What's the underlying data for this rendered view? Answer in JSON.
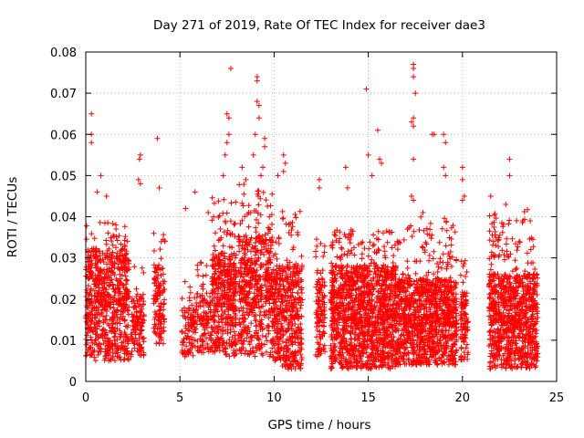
{
  "chart_data": {
    "type": "scatter",
    "title": "Day 271 of 2019, Rate Of TEC Index for receiver dae3",
    "xlabel": "GPS time / hours",
    "ylabel": "ROTI / TECUs",
    "xlim": [
      0,
      25
    ],
    "ylim": [
      0,
      0.08
    ],
    "xticks": [
      0,
      5,
      10,
      15,
      20,
      25
    ],
    "yticks": [
      0,
      0.01,
      0.02,
      0.03,
      0.04,
      0.05,
      0.06,
      0.07,
      0.08
    ],
    "xtick_labels": [
      "0",
      "5",
      "10",
      "15",
      "20",
      "25"
    ],
    "ytick_labels": [
      "0",
      "0.01",
      "0.02",
      "0.03",
      "0.04",
      "0.05",
      "0.06",
      "0.07",
      "0.08"
    ],
    "grid": true,
    "marker": "+",
    "color": "#ff0000",
    "series": [
      {
        "name": "ROTI",
        "clusters": [
          {
            "t_start": 0.0,
            "t_end": 2.3,
            "y_low": 0.005,
            "y_high": 0.039,
            "count": 700,
            "ymean": 0.018
          },
          {
            "t_start": 2.4,
            "t_end": 3.1,
            "y_low": 0.006,
            "y_high": 0.028,
            "count": 120,
            "ymean": 0.013
          },
          {
            "t_start": 3.6,
            "t_end": 4.2,
            "y_low": 0.009,
            "y_high": 0.036,
            "count": 130,
            "ymean": 0.018
          },
          {
            "t_start": 5.1,
            "t_end": 5.9,
            "y_low": 0.006,
            "y_high": 0.025,
            "count": 100,
            "ymean": 0.012
          },
          {
            "t_start": 5.9,
            "t_end": 6.7,
            "y_low": 0.007,
            "y_high": 0.03,
            "count": 110,
            "ymean": 0.014
          },
          {
            "t_start": 6.7,
            "t_end": 8.0,
            "y_low": 0.006,
            "y_high": 0.045,
            "count": 420,
            "ymean": 0.018
          },
          {
            "t_start": 8.1,
            "t_end": 9.9,
            "y_low": 0.006,
            "y_high": 0.048,
            "count": 520,
            "ymean": 0.02
          },
          {
            "t_start": 9.9,
            "t_end": 10.4,
            "y_low": 0.005,
            "y_high": 0.035,
            "count": 160,
            "ymean": 0.016
          },
          {
            "t_start": 10.4,
            "t_end": 11.5,
            "y_low": 0.003,
            "y_high": 0.042,
            "count": 330,
            "ymean": 0.015
          },
          {
            "t_start": 12.2,
            "t_end": 12.7,
            "y_low": 0.006,
            "y_high": 0.035,
            "count": 120,
            "ymean": 0.015
          },
          {
            "t_start": 13.0,
            "t_end": 16.5,
            "y_low": 0.003,
            "y_high": 0.037,
            "count": 1300,
            "ymean": 0.015
          },
          {
            "t_start": 16.5,
            "t_end": 19.7,
            "y_low": 0.004,
            "y_high": 0.04,
            "count": 1100,
            "ymean": 0.014
          },
          {
            "t_start": 19.9,
            "t_end": 20.3,
            "y_low": 0.005,
            "y_high": 0.03,
            "count": 100,
            "ymean": 0.013
          },
          {
            "t_start": 21.4,
            "t_end": 24.0,
            "y_low": 0.003,
            "y_high": 0.042,
            "count": 900,
            "ymean": 0.014
          }
        ],
        "outliers": [
          {
            "x": 0.3,
            "y": 0.065
          },
          {
            "x": 0.3,
            "y": 0.06
          },
          {
            "x": 0.3,
            "y": 0.058
          },
          {
            "x": 0.8,
            "y": 0.05
          },
          {
            "x": 0.6,
            "y": 0.046
          },
          {
            "x": 1.1,
            "y": 0.045
          },
          {
            "x": 2.9,
            "y": 0.055
          },
          {
            "x": 2.85,
            "y": 0.054
          },
          {
            "x": 2.8,
            "y": 0.049
          },
          {
            "x": 2.9,
            "y": 0.048
          },
          {
            "x": 3.8,
            "y": 0.059
          },
          {
            "x": 3.9,
            "y": 0.047
          },
          {
            "x": 5.3,
            "y": 0.042
          },
          {
            "x": 5.8,
            "y": 0.046
          },
          {
            "x": 6.5,
            "y": 0.041
          },
          {
            "x": 7.5,
            "y": 0.065
          },
          {
            "x": 7.6,
            "y": 0.064
          },
          {
            "x": 7.6,
            "y": 0.06
          },
          {
            "x": 7.5,
            "y": 0.058
          },
          {
            "x": 7.4,
            "y": 0.055
          },
          {
            "x": 7.3,
            "y": 0.05
          },
          {
            "x": 7.7,
            "y": 0.076
          },
          {
            "x": 9.1,
            "y": 0.074
          },
          {
            "x": 9.1,
            "y": 0.073
          },
          {
            "x": 9.1,
            "y": 0.068
          },
          {
            "x": 9.2,
            "y": 0.067
          },
          {
            "x": 9.2,
            "y": 0.064
          },
          {
            "x": 9.0,
            "y": 0.06
          },
          {
            "x": 9.5,
            "y": 0.059
          },
          {
            "x": 9.5,
            "y": 0.057
          },
          {
            "x": 8.9,
            "y": 0.055
          },
          {
            "x": 9.4,
            "y": 0.052
          },
          {
            "x": 9.3,
            "y": 0.05
          },
          {
            "x": 8.3,
            "y": 0.052
          },
          {
            "x": 8.5,
            "y": 0.049
          },
          {
            "x": 10.2,
            "y": 0.05
          },
          {
            "x": 10.5,
            "y": 0.055
          },
          {
            "x": 10.6,
            "y": 0.053
          },
          {
            "x": 10.5,
            "y": 0.051
          },
          {
            "x": 12.4,
            "y": 0.049
          },
          {
            "x": 12.4,
            "y": 0.047
          },
          {
            "x": 13.8,
            "y": 0.052
          },
          {
            "x": 13.9,
            "y": 0.047
          },
          {
            "x": 14.9,
            "y": 0.071
          },
          {
            "x": 15.0,
            "y": 0.055
          },
          {
            "x": 15.5,
            "y": 0.061
          },
          {
            "x": 15.6,
            "y": 0.054
          },
          {
            "x": 15.7,
            "y": 0.053
          },
          {
            "x": 15.2,
            "y": 0.05
          },
          {
            "x": 17.4,
            "y": 0.077
          },
          {
            "x": 17.4,
            "y": 0.076
          },
          {
            "x": 17.4,
            "y": 0.074
          },
          {
            "x": 17.5,
            "y": 0.07
          },
          {
            "x": 17.4,
            "y": 0.064
          },
          {
            "x": 17.3,
            "y": 0.063
          },
          {
            "x": 17.4,
            "y": 0.062
          },
          {
            "x": 17.4,
            "y": 0.054
          },
          {
            "x": 17.3,
            "y": 0.045
          },
          {
            "x": 17.4,
            "y": 0.044
          },
          {
            "x": 18.4,
            "y": 0.06
          },
          {
            "x": 18.5,
            "y": 0.06
          },
          {
            "x": 19.0,
            "y": 0.06
          },
          {
            "x": 19.1,
            "y": 0.058
          },
          {
            "x": 19.0,
            "y": 0.052
          },
          {
            "x": 19.1,
            "y": 0.05
          },
          {
            "x": 20.0,
            "y": 0.052
          },
          {
            "x": 20.0,
            "y": 0.049
          },
          {
            "x": 20.1,
            "y": 0.045
          },
          {
            "x": 20.0,
            "y": 0.044
          },
          {
            "x": 17.9,
            "y": 0.041
          },
          {
            "x": 22.5,
            "y": 0.054
          },
          {
            "x": 22.5,
            "y": 0.05
          },
          {
            "x": 21.5,
            "y": 0.045
          },
          {
            "x": 22.3,
            "y": 0.043
          },
          {
            "x": 23.6,
            "y": 0.039
          }
        ]
      }
    ]
  }
}
